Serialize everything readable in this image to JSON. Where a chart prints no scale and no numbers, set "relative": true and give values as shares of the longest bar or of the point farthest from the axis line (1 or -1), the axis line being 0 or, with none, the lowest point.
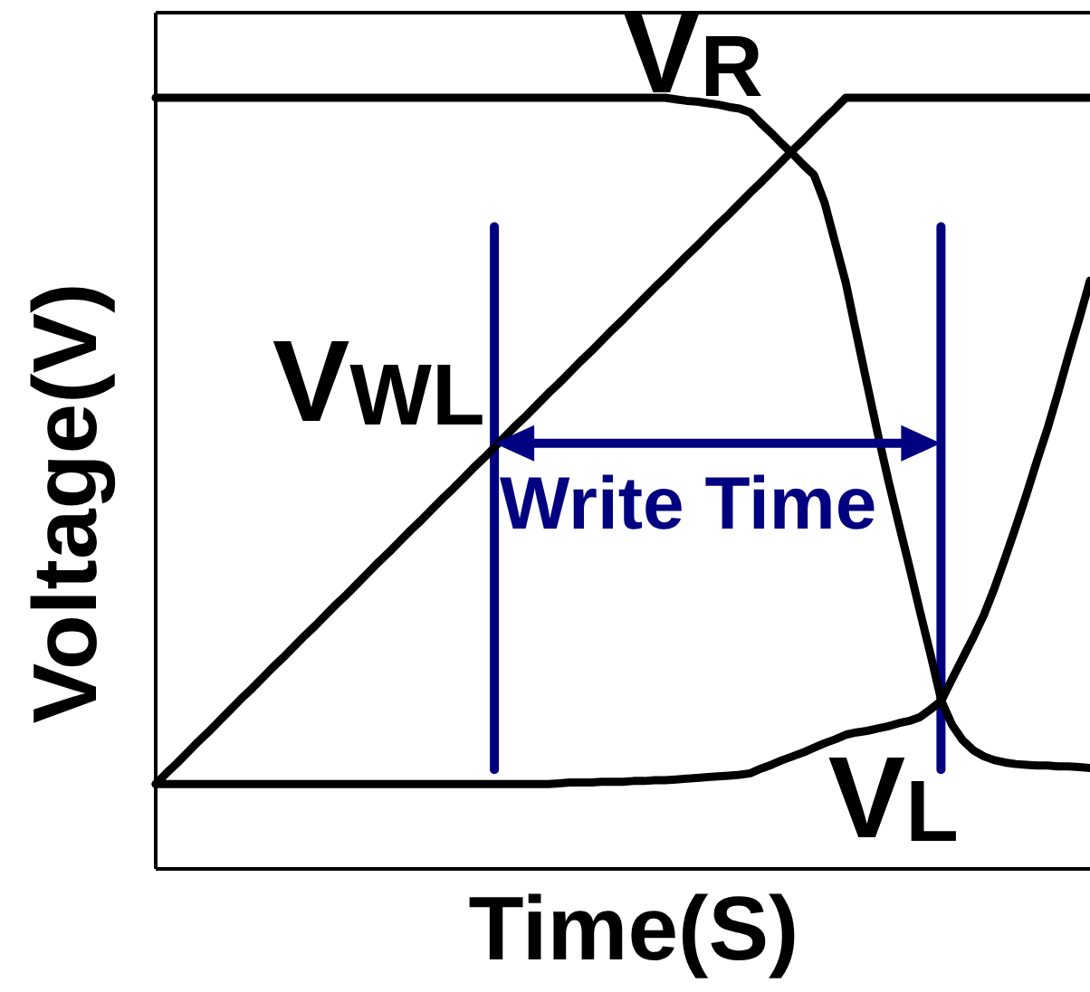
{
  "chart_data": {
    "type": "line",
    "xlabel": "Time(S)",
    "ylabel": "Voltage(V)",
    "relative": true,
    "categories": [
      null,
      null,
      null,
      null,
      null,
      null,
      null,
      null,
      null,
      null,
      null,
      null,
      null,
      null,
      null,
      null,
      null,
      null,
      null,
      null,
      null,
      null,
      null,
      null,
      null,
      null,
      null,
      null,
      null,
      null,
      null,
      null,
      null,
      null,
      null,
      null,
      null,
      null,
      null,
      null,
      null,
      null,
      null,
      null,
      null,
      null,
      null,
      null,
      null,
      null,
      null,
      null,
      null,
      null,
      null,
      null,
      null,
      null,
      null,
      null,
      null,
      null,
      null,
      null,
      null,
      null,
      null,
      null,
      null,
      null,
      null,
      null,
      null,
      null,
      null,
      null,
      null,
      null,
      null,
      null,
      null,
      null,
      null,
      null,
      null,
      null,
      null,
      null,
      null
    ],
    "series": [
      {
        "name": "V$_{R}$",
        "color": "#000000",
        "values": [
          1,
          1,
          1,
          1,
          1,
          1,
          1,
          1,
          1,
          1,
          1,
          1,
          1,
          1,
          1,
          1,
          1,
          1,
          1,
          1,
          1,
          1,
          1,
          1,
          1,
          1,
          1,
          1,
          1,
          1,
          1,
          1,
          1,
          1,
          1,
          1,
          1,
          1,
          1,
          1,
          1,
          1,
          1,
          1,
          1,
          1,
          1,
          1,
          1,
          0.998,
          0.996,
          0.995,
          0.993,
          0.991,
          0.988,
          0.986,
          0.981,
          0.967,
          0.954,
          0.94,
          0.927,
          0.913,
          0.9,
          0.864,
          0.812,
          0.76,
          0.694,
          0.629,
          0.565,
          0.504,
          0.447,
          0.391,
          0.333,
          0.277,
          0.218,
          0.187,
          0.167,
          0.154,
          0.146,
          0.141,
          0.138,
          0.136,
          0.135,
          0.134,
          0.134,
          0.133,
          0.133,
          0.132,
          0.131
        ]
      },
      {
        "name": "V$_{WL}$",
        "color": "#000000",
        "values": [
          0.11,
          0.124,
          0.137,
          0.151,
          0.165,
          0.178,
          0.192,
          0.206,
          0.22,
          0.233,
          0.247,
          0.261,
          0.274,
          0.288,
          0.302,
          0.315,
          0.329,
          0.343,
          0.356,
          0.37,
          0.384,
          0.398,
          0.411,
          0.425,
          0.439,
          0.452,
          0.466,
          0.48,
          0.493,
          0.507,
          0.521,
          0.534,
          0.548,
          0.562,
          0.576,
          0.589,
          0.603,
          0.617,
          0.63,
          0.644,
          0.658,
          0.671,
          0.685,
          0.699,
          0.712,
          0.726,
          0.74,
          0.754,
          0.767,
          0.781,
          0.795,
          0.808,
          0.822,
          0.836,
          0.849,
          0.863,
          0.877,
          0.89,
          0.904,
          0.918,
          0.932,
          0.945,
          0.959,
          0.973,
          0.986,
          1,
          1,
          1,
          1,
          1,
          1,
          1,
          1,
          1,
          1,
          1,
          1,
          1,
          1,
          1,
          1,
          1,
          1,
          1,
          1,
          1,
          1,
          1,
          1
        ]
      },
      {
        "name": "V$_{L}$",
        "color": "#000000",
        "values": [
          0.11,
          0.11,
          0.11,
          0.11,
          0.11,
          0.11,
          0.11,
          0.11,
          0.11,
          0.11,
          0.11,
          0.11,
          0.11,
          0.11,
          0.11,
          0.11,
          0.11,
          0.11,
          0.11,
          0.11,
          0.11,
          0.11,
          0.11,
          0.11,
          0.11,
          0.11,
          0.11,
          0.11,
          0.11,
          0.11,
          0.11,
          0.11,
          0.11,
          0.11,
          0.11,
          0.11,
          0.11,
          0.11,
          0.111,
          0.112,
          0.112,
          0.112,
          0.113,
          0.113,
          0.113,
          0.114,
          0.114,
          0.115,
          0.115,
          0.116,
          0.117,
          0.118,
          0.119,
          0.12,
          0.121,
          0.122,
          0.124,
          0.13,
          0.135,
          0.141,
          0.146,
          0.151,
          0.157,
          0.163,
          0.168,
          0.174,
          0.177,
          0.179,
          0.182,
          0.185,
          0.189,
          0.192,
          0.197,
          0.207,
          0.218,
          0.246,
          0.273,
          0.3,
          0.329,
          0.364,
          0.403,
          0.443,
          0.485,
          0.529,
          0.571,
          0.618,
          0.667,
          0.714,
          0.763
        ]
      }
    ],
    "annotations": [
      "Write Time"
    ]
  }
}
